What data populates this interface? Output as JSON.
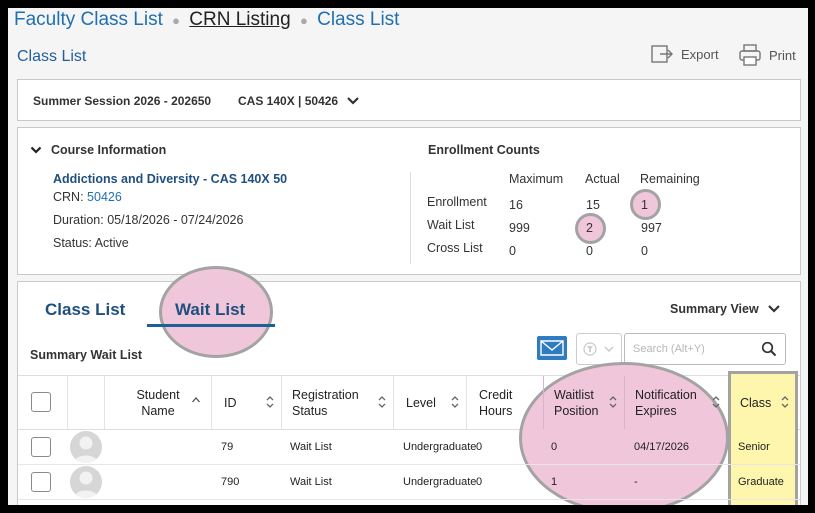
{
  "breadcrumb": {
    "items": [
      "Faculty Class List",
      "CRN Listing",
      "Class List"
    ],
    "separator": "●"
  },
  "page_title": "Class List",
  "actions": {
    "export_label": "Export",
    "print_label": "Print"
  },
  "session": {
    "term": "Summer Session 2026 - 202650",
    "course": "CAS 140X | 50426"
  },
  "course_info": {
    "heading": "Course Information",
    "title": "Addictions and Diversity - CAS 140X 50",
    "crn_label": "CRN:",
    "crn": "50426",
    "duration_label": "Duration:",
    "duration": "05/18/2026 - 07/24/2026",
    "status_label": "Status:",
    "status": "Active"
  },
  "enrollment_counts": {
    "heading": "Enrollment Counts",
    "columns": [
      "Maximum",
      "Actual",
      "Remaining"
    ],
    "rows": [
      {
        "label": "Enrollment",
        "values": [
          "16",
          "15",
          "1"
        ]
      },
      {
        "label": "Wait List",
        "values": [
          "999",
          "2",
          "997"
        ]
      },
      {
        "label": "Cross List",
        "values": [
          "0",
          "0",
          "0"
        ]
      }
    ]
  },
  "tabs": {
    "class_list": "Class List",
    "wait_list": "Wait List",
    "active": "wait_list"
  },
  "summary_view_label": "Summary View",
  "summary_wait_list_label": "Summary Wait List",
  "search": {
    "placeholder": "Search (Alt+Y)"
  },
  "table": {
    "headers": {
      "student_name": "Student Name",
      "id": "ID",
      "registration_status": "Registration Status",
      "level": "Level",
      "credit_hours": "Credit Hours",
      "waitlist_position": "Waitlist Position",
      "notification_expires": "Notification Expires",
      "class": "Class"
    },
    "rows": [
      {
        "student_name": "",
        "id": "79",
        "registration_status": "Wait List",
        "level": "Undergraduate",
        "credit_hours": "0",
        "waitlist_position": "0",
        "notification_expires": "04/17/2026",
        "class": "Senior"
      },
      {
        "student_name": "",
        "id": "790",
        "registration_status": "Wait List",
        "level": "Undergraduate",
        "credit_hours": "0",
        "waitlist_position": "1",
        "notification_expires": "-",
        "class": "Graduate"
      }
    ]
  },
  "colors": {
    "link_blue": "#1f6fb2",
    "highlight_pink": "#f0c6da",
    "highlight_yellow": "#fff6ad",
    "mail_blue": "#2f7bbf"
  },
  "icons": [
    "chevron-down-icon",
    "export-icon",
    "print-icon",
    "mail-icon",
    "filter-icon",
    "search-icon",
    "sort-icon",
    "avatar-icon"
  ]
}
